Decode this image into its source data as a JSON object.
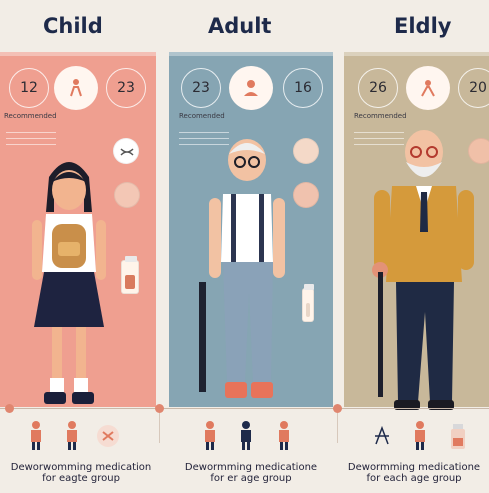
{
  "headings": {
    "child": "Child",
    "adult": "Adult",
    "elderly": "Eldly"
  },
  "child": {
    "numbers": [
      "12",
      "23"
    ],
    "note": "Recommended",
    "caption_line1": "Deworwomming medication",
    "caption_line2": "for  eagte group"
  },
  "adult": {
    "numbers": [
      "23",
      "16"
    ],
    "note": "Recomended",
    "caption_line1": "Dewormming medicatione",
    "caption_line2": "for er age group"
  },
  "elderly": {
    "numbers": [
      "26",
      "20"
    ],
    "note": "Recommended",
    "caption_line1": "Dewormming medicatione",
    "caption_line2": "for each age group"
  },
  "colors": {
    "child_panel": "#ef9f90",
    "adult_panel": "#86a5b3",
    "elderly_panel": "#c8b89a",
    "heading": "#1e2a4a"
  },
  "icons": [
    "person-icon",
    "pill-icon",
    "medicine-bottle-icon",
    "backpack-icon",
    "cane-icon"
  ]
}
